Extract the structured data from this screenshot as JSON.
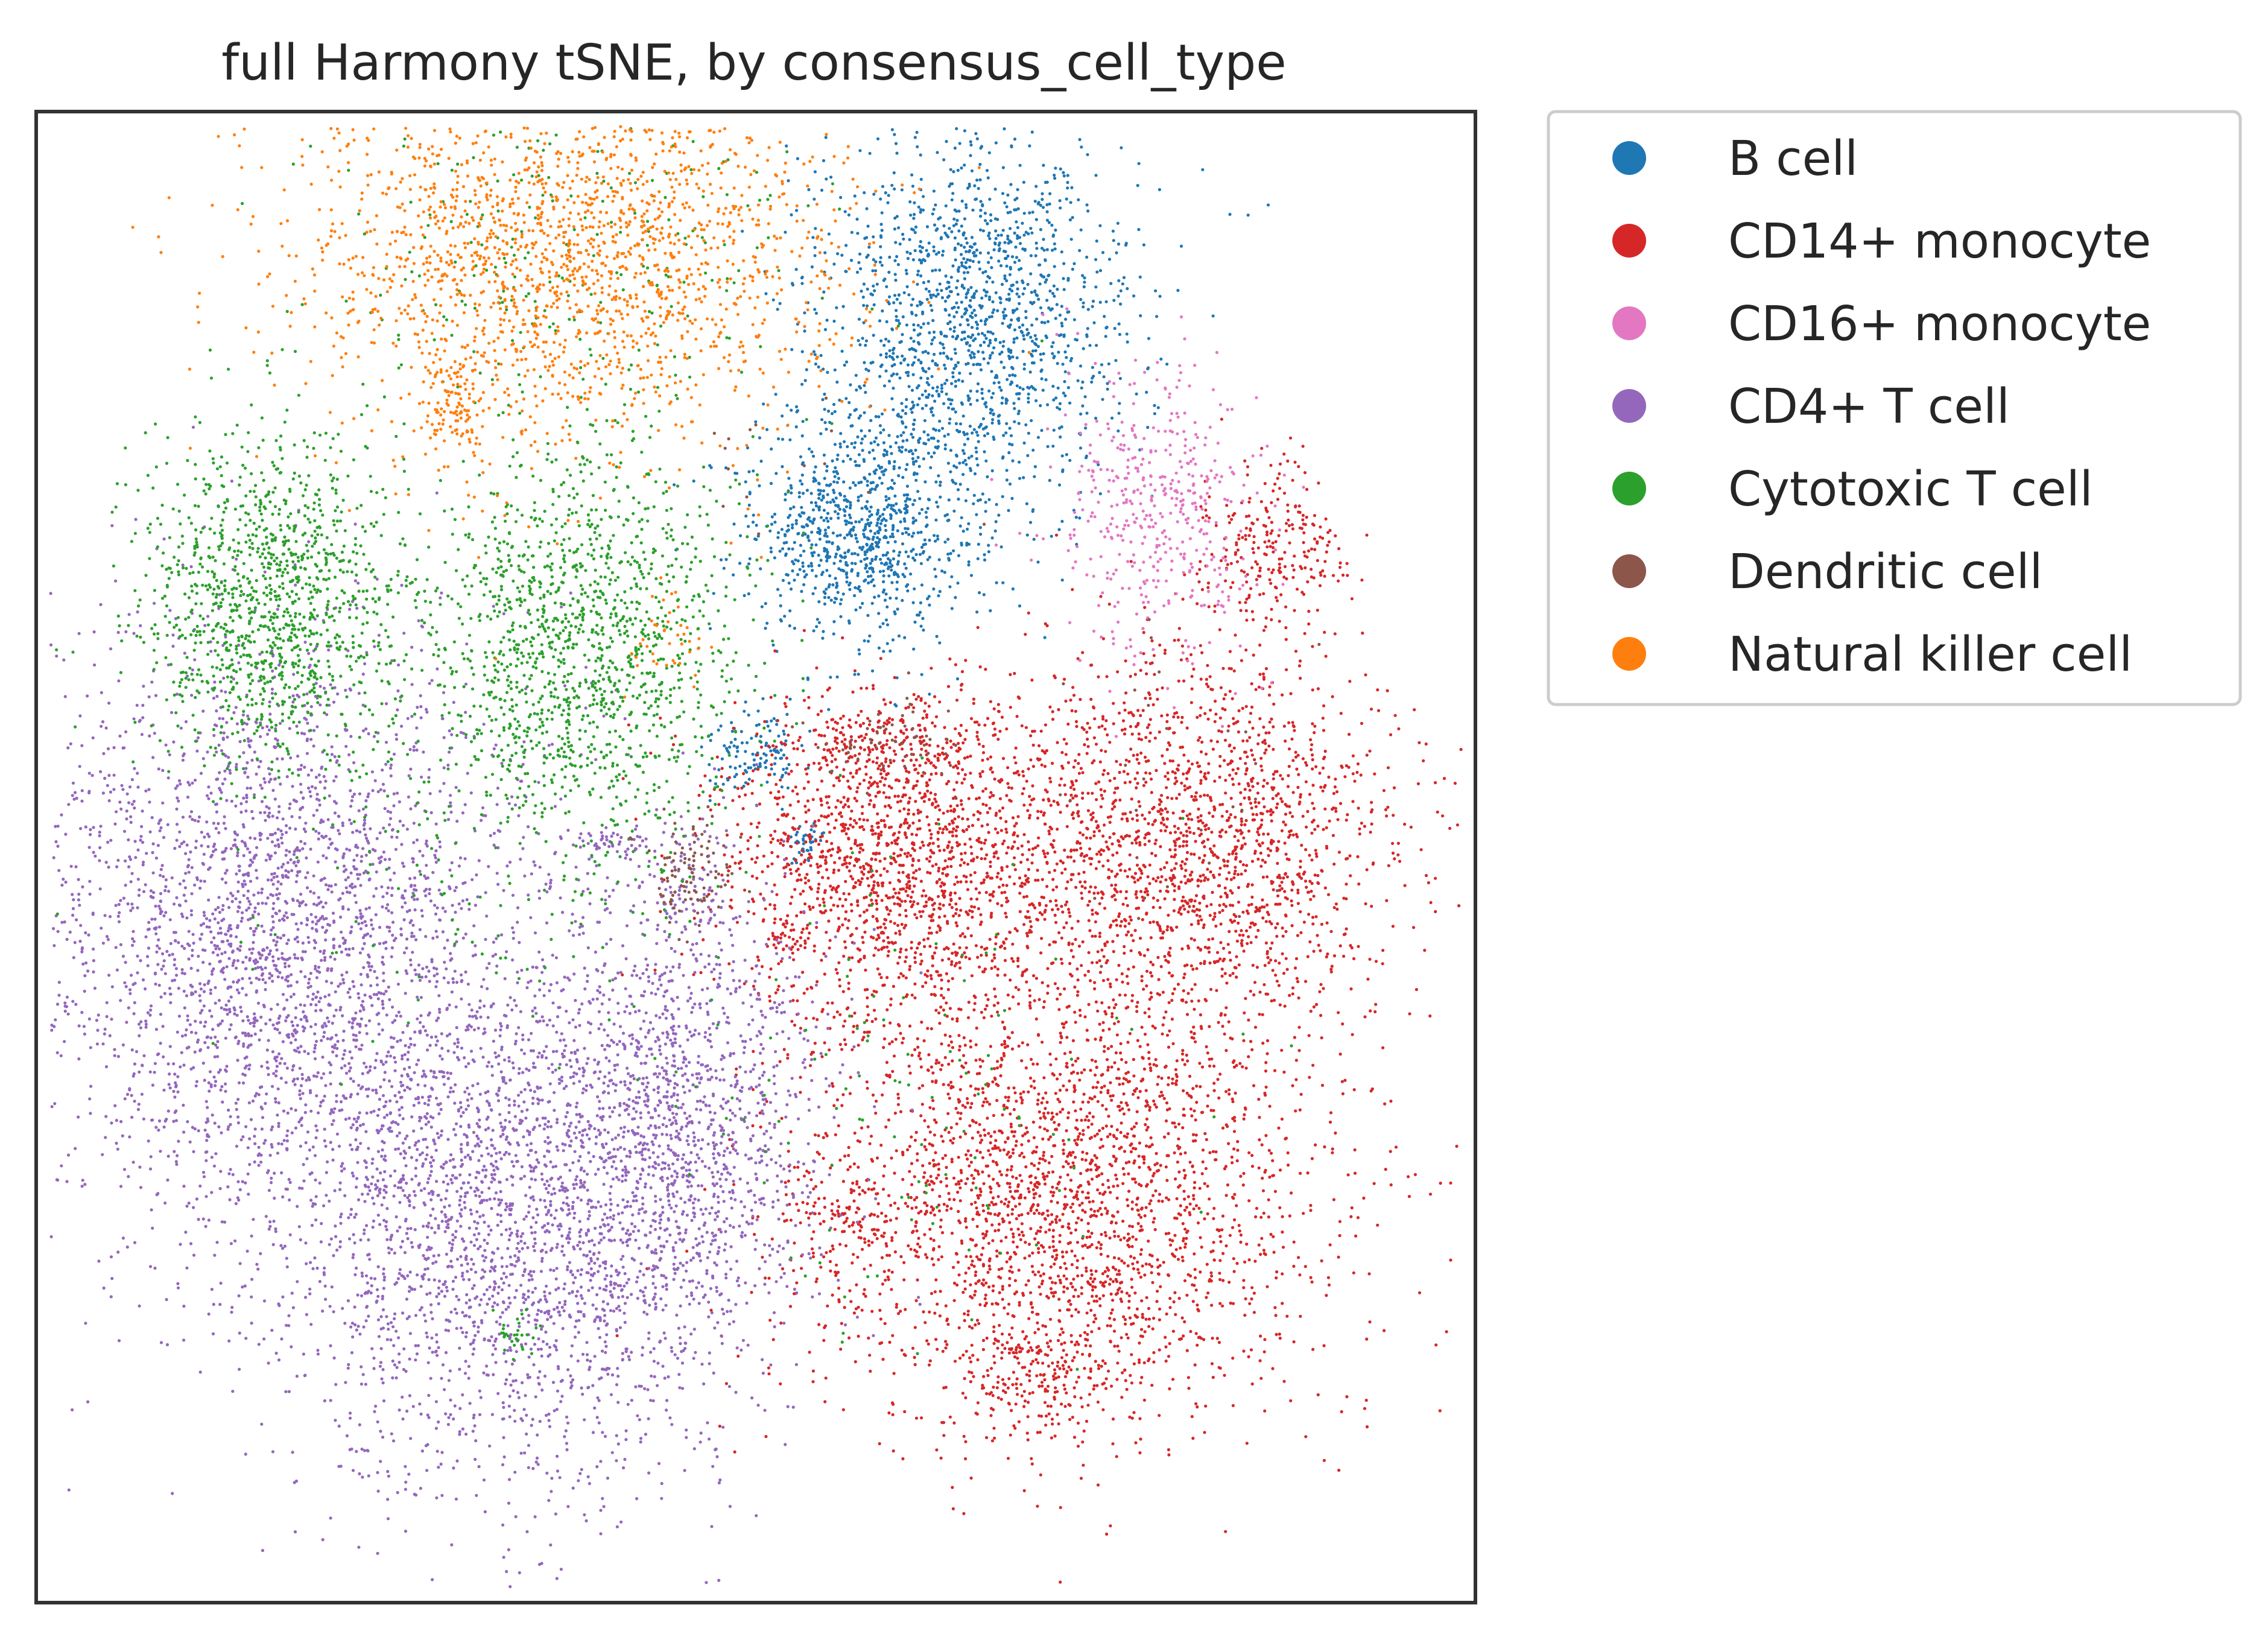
{
  "chart_data": {
    "type": "scatter",
    "title": "full Harmony tSNE, by consensus_cell_type",
    "xlabel": "",
    "ylabel": "",
    "ticks": "none",
    "grid": false,
    "legend_placement": "outside-top-right",
    "xlim": [
      -50,
      50
    ],
    "ylim": [
      -50,
      50
    ],
    "series": [
      {
        "name": "B cell",
        "color": "#1f77b4",
        "clusters": [
          {
            "x": 15,
            "y": 36,
            "sx": 5.5,
            "sy": 6.5,
            "n": 1500
          },
          {
            "x": 7,
            "y": 22,
            "sx": 4,
            "sy": 4,
            "n": 900
          },
          {
            "x": 0,
            "y": 7,
            "sx": 1.7,
            "sy": 1.5,
            "n": 120
          },
          {
            "x": 3.5,
            "y": 1,
            "sx": 0.6,
            "sy": 0.6,
            "n": 40
          }
        ]
      },
      {
        "name": "CD14+ monocyte",
        "color": "#d62728",
        "clusters": [
          {
            "x": 10,
            "y": 0,
            "sx": 6,
            "sy": 5.5,
            "n": 1600
          },
          {
            "x": 30,
            "y": 1,
            "sx": 7,
            "sy": 6.5,
            "n": 1800
          },
          {
            "x": 21.5,
            "y": -22.5,
            "sx": 9,
            "sy": 8,
            "n": 2600
          },
          {
            "x": 36,
            "y": 21,
            "sx": 2.5,
            "sy": 3,
            "n": 250
          },
          {
            "x": 9,
            "y": 7.5,
            "sx": 3.5,
            "sy": 1.2,
            "n": 150
          },
          {
            "x": 2,
            "y": -5,
            "sx": 0.8,
            "sy": 0.8,
            "n": 30
          },
          {
            "x": 6,
            "y": -25,
            "sx": 2,
            "sy": 3,
            "n": 120
          },
          {
            "x": 20,
            "y": -35,
            "sx": 3,
            "sy": 1.5,
            "n": 150
          }
        ]
      },
      {
        "name": "CD16+ monocyte",
        "color": "#e377c2",
        "clusters": [
          {
            "x": 28,
            "y": 23,
            "sx": 3.5,
            "sy": 5,
            "n": 450
          }
        ]
      },
      {
        "name": "CD4+ T cell",
        "color": "#9467bd",
        "clusters": [
          {
            "x": -33,
            "y": -5,
            "sx": 9,
            "sy": 10,
            "n": 3000
          },
          {
            "x": -17,
            "y": -25,
            "sx": 8.5,
            "sy": 9,
            "n": 2400
          },
          {
            "x": -5,
            "y": -17,
            "sx": 5,
            "sy": 8,
            "n": 1200
          },
          {
            "x": -10,
            "y": 1,
            "sx": 1.8,
            "sy": 0.5,
            "n": 50
          },
          {
            "x": -4.5,
            "y": -2,
            "sx": 1.3,
            "sy": 1.8,
            "n": 60
          }
        ]
      },
      {
        "name": "Cytotoxic T cell",
        "color": "#2ca02c",
        "clusters": [
          {
            "x": -34,
            "y": 17.5,
            "sx": 4.5,
            "sy": 5.5,
            "n": 1200
          },
          {
            "x": -12,
            "y": 14,
            "sx": 5.5,
            "sy": 7,
            "n": 1400
          },
          {
            "x": -13,
            "y": 40,
            "sx": 9,
            "sy": 6,
            "n": 250
          },
          {
            "x": -20,
            "y": 0,
            "sx": 8,
            "sy": 7,
            "n": 150
          },
          {
            "x": 10,
            "y": -15,
            "sx": 8,
            "sy": 8,
            "n": 120
          },
          {
            "x": -17,
            "y": -32,
            "sx": 1,
            "sy": 0.8,
            "n": 30
          }
        ]
      },
      {
        "name": "Dendritic cell",
        "color": "#8c564b",
        "clusters": [
          {
            "x": -4.5,
            "y": -1,
            "sx": 1.4,
            "sy": 1.8,
            "n": 100
          },
          {
            "x": 9,
            "y": 7.5,
            "sx": 3,
            "sy": 1.2,
            "n": 60
          },
          {
            "x": 1,
            "y": 26,
            "sx": 5,
            "sy": 2,
            "n": 15
          },
          {
            "x": 28,
            "y": 4,
            "sx": 6,
            "sy": 6,
            "n": 30
          }
        ]
      },
      {
        "name": "Natural killer cell",
        "color": "#ff7f0e",
        "clusters": [
          {
            "x": -13,
            "y": 41,
            "sx": 9.5,
            "sy": 6.5,
            "n": 2000
          },
          {
            "x": -21,
            "y": 30,
            "sx": 1.2,
            "sy": 2,
            "n": 120
          },
          {
            "x": -6,
            "y": 15,
            "sx": 1.5,
            "sy": 2,
            "n": 40
          }
        ]
      }
    ]
  }
}
